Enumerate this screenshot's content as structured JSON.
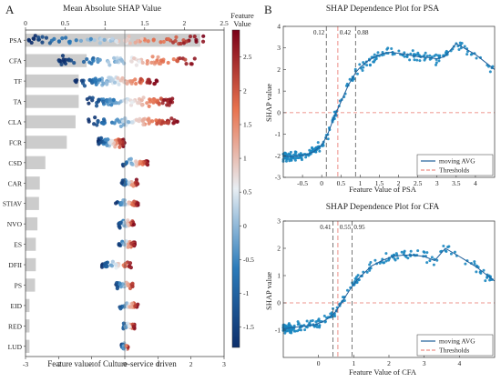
{
  "panel_labels": {
    "a": "A",
    "b": "B"
  },
  "chart_data": [
    {
      "type": "scatter",
      "subtype": "shap-beeswarm-with-importance-bars",
      "title": "Mean Absolute SHAP Value",
      "xlabel": "Feature value of Culture-service driven",
      "top_axis_ticks": [
        "0",
        "0.5",
        "1",
        "1.5",
        "2",
        "2.5"
      ],
      "top_axis_range": [
        0,
        2.5
      ],
      "bottom_axis_ticks": [
        "-3",
        "-2",
        "-1",
        "0",
        "1",
        "2",
        "3"
      ],
      "bottom_axis_range": [
        -3,
        3
      ],
      "categories": [
        "PSA",
        "CFA",
        "TF",
        "TA",
        "CLA",
        "FCR",
        "CSD",
        "CAR",
        "STIAV",
        "NVO",
        "ES",
        "DFII",
        "PS",
        "EID",
        "RED",
        "LUD"
      ],
      "mean_abs_shap": [
        2.2,
        0.77,
        0.67,
        0.67,
        0.63,
        0.52,
        0.25,
        0.18,
        0.17,
        0.15,
        0.13,
        0.13,
        0.12,
        0.05,
        0.05,
        0.05
      ],
      "shap_spread": [
        {
          "min": -2.9,
          "max": 2.4
        },
        {
          "min": -2.0,
          "max": 2.3
        },
        {
          "min": -1.5,
          "max": 1.0
        },
        {
          "min": -1.2,
          "max": 1.5
        },
        {
          "min": -1.1,
          "max": 1.6
        },
        {
          "min": -0.8,
          "max": 0.0
        },
        {
          "min": -0.1,
          "max": 0.7
        },
        {
          "min": -0.1,
          "max": 0.4
        },
        {
          "min": -0.3,
          "max": 0.4
        },
        {
          "min": -0.2,
          "max": 0.3
        },
        {
          "min": -0.2,
          "max": 0.3
        },
        {
          "min": -0.7,
          "max": 0.2
        },
        {
          "min": -0.3,
          "max": 0.3
        },
        {
          "min": -0.2,
          "max": 0.4
        },
        {
          "min": -0.1,
          "max": 0.3
        },
        {
          "min": -0.1,
          "max": 0.1
        }
      ],
      "colorbar": {
        "label": "Feature Value",
        "ticks": [
          "-1.5",
          "-1",
          "-0.5",
          "0",
          "0.5",
          "1",
          "1.5",
          "2",
          "2.5"
        ],
        "range": [
          -1.8,
          2.9
        ],
        "colors": [
          "#0d2f6b",
          "#2b7bba",
          "#e8eef3",
          "#e8734f",
          "#7a0018"
        ]
      },
      "bar_color": "#cccccc"
    },
    {
      "type": "scatter",
      "title": "SHAP Dependence Plot for PSA",
      "xlabel": "Feature Value of PSA",
      "ylabel": "SHAP value",
      "xlim": [
        -1,
        4.5
      ],
      "ylim": [
        -3,
        4
      ],
      "x_ticks": [
        "-0.5",
        "0",
        "0.5",
        "1",
        "1.5",
        "2",
        "2.5",
        "3",
        "3.5",
        "4"
      ],
      "y_ticks": [
        "-3",
        "-2",
        "-1",
        "0",
        "1",
        "2",
        "3",
        "4"
      ],
      "thresholds": [
        {
          "x": 0.12,
          "label": "0.12",
          "color": "#555555"
        },
        {
          "x": 0.42,
          "label": "0.42",
          "color": "#e8736a"
        },
        {
          "x": 0.88,
          "label": "0.88",
          "color": "#555555"
        }
      ],
      "zero_line_color": "#e8736a",
      "moving_avg": {
        "x": [
          -1,
          -0.8,
          -0.6,
          -0.4,
          -0.2,
          0,
          0.1,
          0.2,
          0.3,
          0.4,
          0.5,
          0.6,
          0.7,
          0.8,
          0.9,
          1.0,
          1.2,
          1.4,
          1.6,
          1.8,
          2.0,
          2.2,
          2.5,
          2.8,
          3.0,
          3.2,
          3.5,
          4.0,
          4.5
        ],
        "y": [
          -2.0,
          -2.05,
          -2.0,
          -1.95,
          -1.8,
          -1.5,
          -1.2,
          -0.8,
          -0.3,
          0.1,
          0.5,
          0.9,
          1.3,
          1.6,
          1.9,
          2.1,
          2.4,
          2.6,
          2.75,
          2.8,
          2.75,
          2.7,
          2.6,
          2.55,
          2.5,
          2.6,
          3.2,
          2.7,
          2.0
        ]
      },
      "legend": [
        "moving AVG",
        "Thresholds"
      ],
      "point_color": "#1a86c0",
      "line_color": "#1f5f9a"
    },
    {
      "type": "scatter",
      "title": "SHAP Dependence Plot for CFA",
      "xlabel": "Feature Value of CFA",
      "ylabel": "SHAP value",
      "xlim": [
        -1,
        5
      ],
      "ylim": [
        -2,
        3
      ],
      "x_ticks": [
        "0",
        "1",
        "2",
        "3",
        "4"
      ],
      "y_ticks": [
        "-1",
        "0",
        "1",
        "2",
        "3"
      ],
      "thresholds": [
        {
          "x": 0.41,
          "label": "0.41",
          "color": "#555555"
        },
        {
          "x": 0.55,
          "label": "0.55",
          "color": "#e8736a"
        },
        {
          "x": 0.95,
          "label": "0.95",
          "color": "#555555"
        }
      ],
      "zero_line_color": "#e8736a",
      "moving_avg": {
        "x": [
          -1,
          -0.7,
          -0.4,
          -0.1,
          0.1,
          0.3,
          0.5,
          0.7,
          0.9,
          1.1,
          1.3,
          1.5,
          1.8,
          2.1,
          2.4,
          2.7,
          3.0,
          3.3,
          3.6,
          4.0,
          4.5,
          5.0
        ],
        "y": [
          -0.95,
          -0.9,
          -0.85,
          -0.8,
          -0.7,
          -0.55,
          -0.3,
          0.1,
          0.5,
          0.85,
          1.1,
          1.35,
          1.55,
          1.7,
          1.75,
          1.75,
          1.7,
          1.55,
          2.0,
          1.7,
          1.3,
          0.8
        ]
      },
      "legend": [
        "moving AVG",
        "Thresholds"
      ],
      "point_color": "#1a86c0",
      "line_color": "#1f5f9a"
    }
  ]
}
